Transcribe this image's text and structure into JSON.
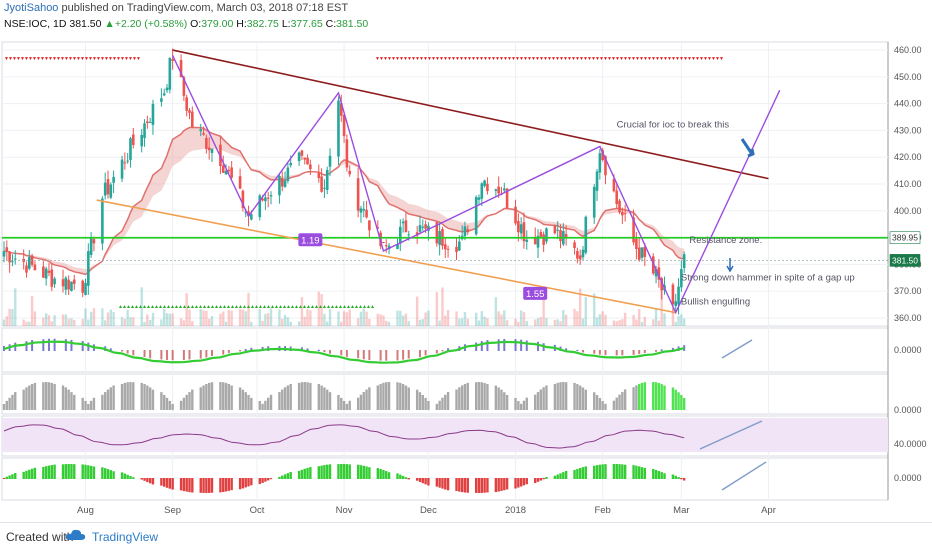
{
  "header": {
    "author": "JyotiSahoo",
    "published": "published on TradingView.com, March 03, 2018 07:18 EST"
  },
  "symbol_bar": {
    "symbol": "NSE:IOC, 1D",
    "last": "381.50",
    "change": "+2.20 (+0.58%)",
    "o_label": "O:",
    "o": "379.00",
    "h_label": "H:",
    "h": "382.75",
    "l_label": "L:",
    "l": "377.65",
    "c_label": "C:",
    "c": "381.50"
  },
  "footer": {
    "created": "Created with",
    "brand": "TradingView"
  },
  "colors": {
    "up": "#26a69a",
    "down": "#ef5350",
    "trend": "#8e1c1c",
    "pattern": "#9b4de0",
    "support": "#f0a050",
    "resistance": "#22cc22",
    "arrow": "#2d6fb8"
  },
  "chart_data": {
    "type": "candlestick",
    "price_axis": {
      "ticks": [
        460,
        450,
        440,
        430,
        420,
        410,
        400,
        390,
        380,
        370,
        360
      ],
      "ylim": [
        357,
        463
      ]
    },
    "price_labels": {
      "resistance": "389.95",
      "last": "381.50"
    },
    "x_axis": {
      "ticks": [
        "Aug",
        "Sep",
        "Oct",
        "Nov",
        "Dec",
        "2018",
        "Feb",
        "Mar",
        "Apr"
      ]
    },
    "price_path_approx": [
      [
        "2017-07-03",
        385
      ],
      [
        "2017-07-20",
        375
      ],
      [
        "2017-07-31",
        372
      ],
      [
        "2017-08-07",
        405
      ],
      [
        "2017-08-18",
        425
      ],
      [
        "2017-08-29",
        445
      ],
      [
        "2017-09-01",
        458
      ],
      [
        "2017-09-08",
        432
      ],
      [
        "2017-09-18",
        420
      ],
      [
        "2017-09-28",
        398
      ],
      [
        "2017-10-06",
        408
      ],
      [
        "2017-10-16",
        418
      ],
      [
        "2017-10-25",
        410
      ],
      [
        "2017-10-30",
        442
      ],
      [
        "2017-11-03",
        410
      ],
      [
        "2017-11-10",
        396
      ],
      [
        "2017-11-15",
        385
      ],
      [
        "2017-11-24",
        395
      ],
      [
        "2017-12-04",
        390
      ],
      [
        "2017-12-13",
        388
      ],
      [
        "2017-12-20",
        412
      ],
      [
        "2017-12-27",
        408
      ],
      [
        "2018-01-05",
        390
      ],
      [
        "2018-01-15",
        392
      ],
      [
        "2018-01-24",
        383
      ],
      [
        "2018-01-31",
        424
      ],
      [
        "2018-02-06",
        403
      ],
      [
        "2018-02-12",
        388
      ],
      [
        "2018-02-20",
        375
      ],
      [
        "2018-02-26",
        362
      ],
      [
        "2018-03-02",
        381.5
      ]
    ],
    "trendlines": [
      {
        "name": "falling resistance",
        "from": [
          "2017-09-01",
          460
        ],
        "to": [
          "2018-04-01",
          412
        ]
      },
      {
        "name": "support",
        "from": [
          "2017-08-05",
          404
        ],
        "to": [
          "2018-02-27",
          362
        ]
      },
      {
        "name": "resistance zone",
        "level": 389.95
      }
    ],
    "pattern_labels": [
      "1.19",
      "1.55"
    ],
    "annotations": [
      "Crucial for ioc to break this",
      "Resistance zone.",
      "Strong down hammer in spite of a gap up",
      "Bullish engulfing"
    ],
    "indicators": [
      {
        "pane": 1,
        "axis_label": "0.0000"
      },
      {
        "pane": 2,
        "axis_label": "0.0000"
      },
      {
        "pane": 3,
        "axis_label": "40.0000"
      },
      {
        "pane": 4,
        "axis_label": "0.0000"
      }
    ]
  }
}
